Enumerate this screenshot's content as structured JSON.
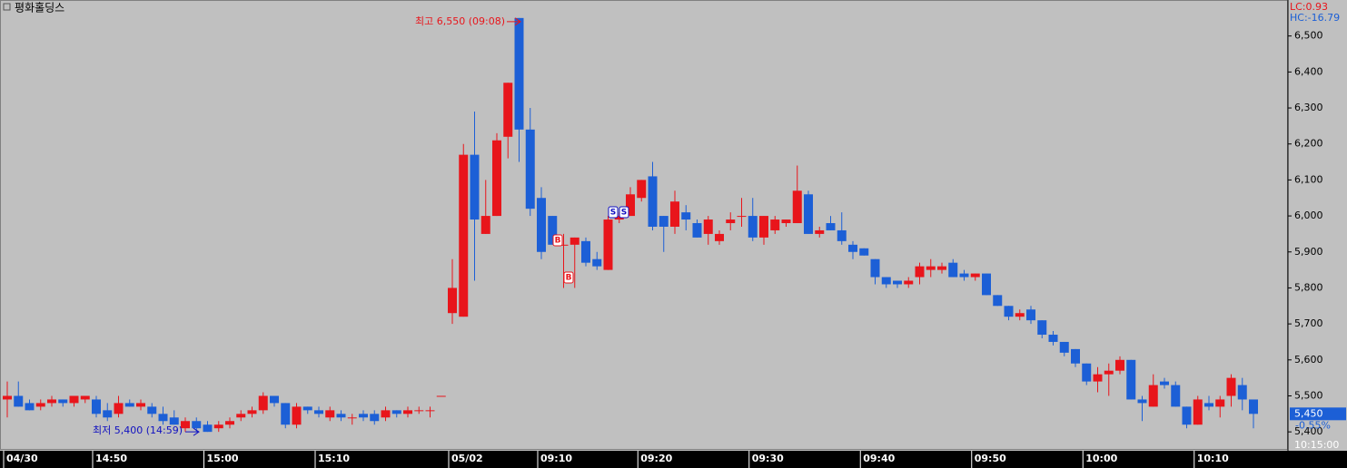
{
  "chart_data": {
    "type": "candlestick",
    "title": "평화홀딩스",
    "indicators": [
      {
        "text": "LC:0.93",
        "color": "#e8151b"
      },
      {
        "text": "HC:-16.79",
        "color": "#1c5fd6"
      }
    ],
    "up_color": "#e8151b",
    "down_color": "#1c5fd6",
    "categories": [
      "04/30",
      null,
      null,
      null,
      null,
      null,
      null,
      null,
      "14:50",
      null,
      null,
      null,
      null,
      null,
      null,
      null,
      null,
      null,
      "15:00",
      null,
      null,
      null,
      null,
      null,
      null,
      null,
      null,
      null,
      "15:10",
      null,
      null,
      null,
      null,
      null,
      null,
      null,
      null,
      null,
      null,
      null,
      "05/02",
      null,
      null,
      null,
      null,
      null,
      null,
      null,
      "09:10",
      null,
      null,
      null,
      null,
      null,
      null,
      null,
      null,
      "09:20",
      null,
      null,
      null,
      null,
      null,
      null,
      null,
      null,
      null,
      "09:30",
      null,
      null,
      null,
      null,
      null,
      null,
      null,
      null,
      null,
      "09:40",
      null,
      null,
      null,
      null,
      null,
      null,
      null,
      null,
      null,
      "09:50",
      null,
      null,
      null,
      null,
      null,
      null,
      null,
      null,
      null,
      "10:00",
      null,
      null,
      null,
      null,
      null,
      null,
      null,
      null,
      null,
      "10:10",
      null,
      null,
      null,
      null,
      null
    ],
    "open": [
      5490,
      5500,
      5480,
      5470,
      5480,
      5490,
      5480,
      5490,
      5490,
      5460,
      5450,
      5480,
      5470,
      5470,
      5450,
      5440,
      5410,
      5430,
      5420,
      5410,
      5420,
      5440,
      5450,
      5460,
      5500,
      5480,
      5420,
      5470,
      5460,
      5440,
      5450,
      5440,
      5450,
      5450,
      5440,
      5460,
      5450,
      5460,
      5460,
      5500,
      5730,
      5720,
      6170,
      5950,
      6000,
      6220,
      6550,
      6240,
      6050,
      6000,
      5920,
      5920,
      5930,
      5880,
      5850,
      5990,
      6000,
      6050,
      6110,
      6000,
      5970,
      6010,
      5980,
      5950,
      5930,
      5980,
      6000,
      6000,
      5940,
      5960,
      5980,
      5980,
      6060,
      5950,
      5980,
      5960,
      5920,
      5910,
      5880,
      5830,
      5820,
      5810,
      5830,
      5850,
      5850,
      5870,
      5840,
      5830,
      5840,
      5780,
      5750,
      5720,
      5740,
      5710,
      5670,
      5650,
      5630,
      5590,
      5540,
      5560,
      5570,
      5600,
      5490,
      5470,
      5540,
      5530,
      5470,
      5420,
      5480,
      5470,
      5500,
      5530,
      5490
    ],
    "high": [
      5540,
      5540,
      5490,
      5490,
      5500,
      5490,
      5500,
      5500,
      5500,
      5480,
      5500,
      5490,
      5490,
      5480,
      5470,
      5460,
      5440,
      5440,
      5430,
      5430,
      5440,
      5460,
      5470,
      5510,
      5500,
      5480,
      5480,
      5470,
      5470,
      5470,
      5460,
      5450,
      5460,
      5460,
      5470,
      5460,
      5470,
      5470,
      5470,
      5500,
      5880,
      6200,
      6290,
      6100,
      6230,
      6370,
      6550,
      6300,
      6080,
      6000,
      5950,
      5940,
      5940,
      5900,
      6000,
      6010,
      6080,
      6100,
      6150,
      6000,
      6070,
      6030,
      5990,
      6000,
      5960,
      6010,
      6050,
      6050,
      6000,
      6000,
      5990,
      6140,
      6070,
      5970,
      6000,
      6010,
      5930,
      5910,
      5880,
      5830,
      5820,
      5830,
      5870,
      5880,
      5870,
      5880,
      5850,
      5840,
      5840,
      5780,
      5750,
      5740,
      5750,
      5710,
      5680,
      5650,
      5630,
      5590,
      5580,
      5590,
      5610,
      5600,
      5500,
      5560,
      5550,
      5540,
      5470,
      5500,
      5500,
      5500,
      5560,
      5550,
      5490
    ],
    "low": [
      5440,
      5470,
      5460,
      5460,
      5470,
      5470,
      5470,
      5480,
      5440,
      5430,
      5440,
      5470,
      5460,
      5440,
      5420,
      5420,
      5400,
      5400,
      5400,
      5400,
      5410,
      5430,
      5440,
      5450,
      5470,
      5410,
      5410,
      5450,
      5440,
      5430,
      5430,
      5420,
      5430,
      5420,
      5430,
      5440,
      5440,
      5450,
      5440,
      5500,
      5700,
      5720,
      5820,
      5950,
      6000,
      6160,
      6150,
      6000,
      5880,
      5920,
      5800,
      5800,
      5860,
      5850,
      5850,
      5980,
      6000,
      6040,
      5960,
      5900,
      5950,
      5960,
      5940,
      5920,
      5920,
      5960,
      5970,
      5930,
      5920,
      5950,
      5970,
      5980,
      5950,
      5940,
      5960,
      5920,
      5880,
      5890,
      5810,
      5800,
      5800,
      5800,
      5810,
      5830,
      5840,
      5830,
      5820,
      5820,
      5780,
      5750,
      5710,
      5710,
      5700,
      5660,
      5640,
      5610,
      5580,
      5530,
      5510,
      5500,
      5560,
      5490,
      5430,
      5470,
      5520,
      5470,
      5410,
      5420,
      5460,
      5440,
      5470,
      5460,
      5410
    ],
    "close": [
      5500,
      5470,
      5460,
      5480,
      5490,
      5480,
      5500,
      5500,
      5450,
      5440,
      5480,
      5470,
      5480,
      5450,
      5430,
      5420,
      5430,
      5410,
      5400,
      5420,
      5430,
      5450,
      5460,
      5500,
      5480,
      5420,
      5470,
      5460,
      5450,
      5460,
      5440,
      5440,
      5440,
      5430,
      5460,
      5450,
      5460,
      5460,
      5460,
      5500,
      5800,
      6170,
      5990,
      6000,
      6210,
      6370,
      6240,
      6020,
      5900,
      5920,
      5920,
      5940,
      5870,
      5860,
      5990,
      6000,
      6060,
      6100,
      5970,
      5970,
      6040,
      5990,
      5940,
      5990,
      5950,
      5990,
      6000,
      5940,
      6000,
      5990,
      5990,
      6070,
      5950,
      5960,
      5960,
      5930,
      5900,
      5890,
      5830,
      5810,
      5810,
      5820,
      5860,
      5860,
      5860,
      5830,
      5830,
      5840,
      5780,
      5750,
      5720,
      5730,
      5710,
      5670,
      5650,
      5620,
      5590,
      5540,
      5560,
      5570,
      5600,
      5490,
      5480,
      5530,
      5530,
      5470,
      5420,
      5490,
      5470,
      5490,
      5550,
      5490,
      5450
    ],
    "ylim": [
      5350,
      6600
    ],
    "yticks": [
      {
        "value": 5400,
        "label": "5,400"
      },
      {
        "value": 5500,
        "label": "5,500"
      },
      {
        "value": 5600,
        "label": "5,600"
      },
      {
        "value": 5700,
        "label": "5,700"
      },
      {
        "value": 5800,
        "label": "5,800"
      },
      {
        "value": 5900,
        "label": "5,900"
      },
      {
        "value": 6000,
        "label": "6,000"
      },
      {
        "value": 6100,
        "label": "6,100"
      },
      {
        "value": 6200,
        "label": "6,200"
      },
      {
        "value": 6300,
        "label": "6,300"
      },
      {
        "value": 6400,
        "label": "6,400"
      },
      {
        "value": 6500,
        "label": "6,500"
      }
    ],
    "high_note": {
      "text": "최고 6,550 (09:08)",
      "value": 6550
    },
    "low_note": {
      "text": "최저 5,400 (14:59)",
      "value": 5400
    },
    "last_price": {
      "value": 5450,
      "label": "5,450"
    },
    "last_change": {
      "value": -0.55,
      "label": "-0.55%"
    },
    "signals": [
      "B",
      "B",
      "S",
      "S"
    ],
    "current_time": "10:15:00"
  }
}
